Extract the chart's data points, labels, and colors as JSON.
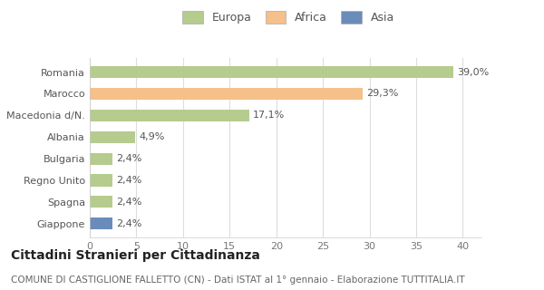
{
  "categories": [
    "Giappone",
    "Spagna",
    "Regno Unito",
    "Bulgaria",
    "Albania",
    "Macedonia d/N.",
    "Marocco",
    "Romania"
  ],
  "values": [
    2.4,
    2.4,
    2.4,
    2.4,
    4.9,
    17.1,
    29.3,
    39.0
  ],
  "colors": [
    "#6b8cba",
    "#b5cc8e",
    "#b5cc8e",
    "#b5cc8e",
    "#b5cc8e",
    "#b5cc8e",
    "#f5c08a",
    "#b5cc8e"
  ],
  "labels": [
    "2,4%",
    "2,4%",
    "2,4%",
    "2,4%",
    "4,9%",
    "17,1%",
    "29,3%",
    "39,0%"
  ],
  "xlim": [
    0,
    42
  ],
  "xticks": [
    0,
    5,
    10,
    15,
    20,
    25,
    30,
    35,
    40
  ],
  "legend_items": [
    {
      "label": "Europa",
      "color": "#b5cc8e"
    },
    {
      "label": "Africa",
      "color": "#f5c08a"
    },
    {
      "label": "Asia",
      "color": "#6b8cba"
    }
  ],
  "title": "Cittadini Stranieri per Cittadinanza",
  "subtitle": "COMUNE DI CASTIGLIONE FALLETTO (CN) - Dati ISTAT al 1° gennaio - Elaborazione TUTTITALIA.IT",
  "fig_background": "#ffffff",
  "plot_background": "#ffffff",
  "bar_height": 0.55,
  "title_fontsize": 10,
  "subtitle_fontsize": 7.5,
  "label_fontsize": 8,
  "tick_fontsize": 8,
  "legend_fontsize": 9
}
